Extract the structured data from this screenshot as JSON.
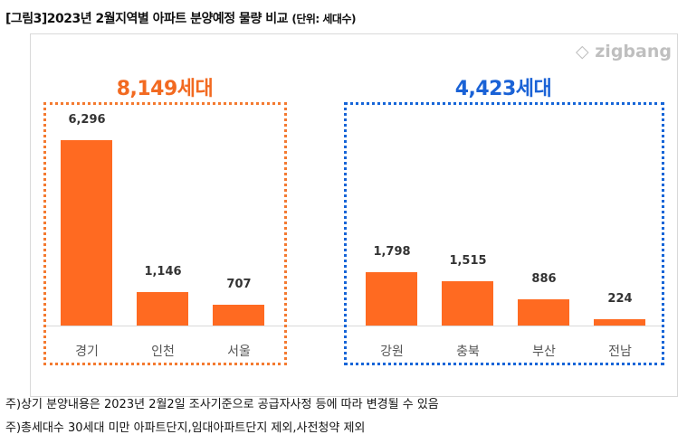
{
  "title": "[그림3]2023년 2월지역별 아파트 분양예정 물량 비교",
  "unit": "(단위: 세대수)",
  "logo": "zigbang",
  "chart_data": {
    "type": "bar",
    "categories": [
      "경기",
      "인천",
      "서울",
      "강원",
      "충북",
      "부산",
      "전남"
    ],
    "values": [
      6296,
      1146,
      707,
      1798,
      1515,
      886,
      224
    ],
    "value_labels": [
      "6,296",
      "1,146",
      "707",
      "1,798",
      "1,515",
      "886",
      "224"
    ],
    "groups": [
      {
        "label": "8,149세대",
        "color": "#f26a21",
        "members": [
          "경기",
          "인천",
          "서울"
        ]
      },
      {
        "label": "4,423세대",
        "color": "#1a62d6",
        "members": [
          "강원",
          "충북",
          "부산",
          "전남"
        ]
      }
    ],
    "bar_color": "#ff6a21",
    "ylim": [
      0,
      6296
    ]
  },
  "notes": [
    "주)상기 분양내용은 2023년 2월2일 조사기준으로 공급자사정 등에 따라 변경될 수 있음",
    "주)총세대수 30세대 미만 아파트단지,임대아파트단지 제외,사전청약 제외"
  ]
}
